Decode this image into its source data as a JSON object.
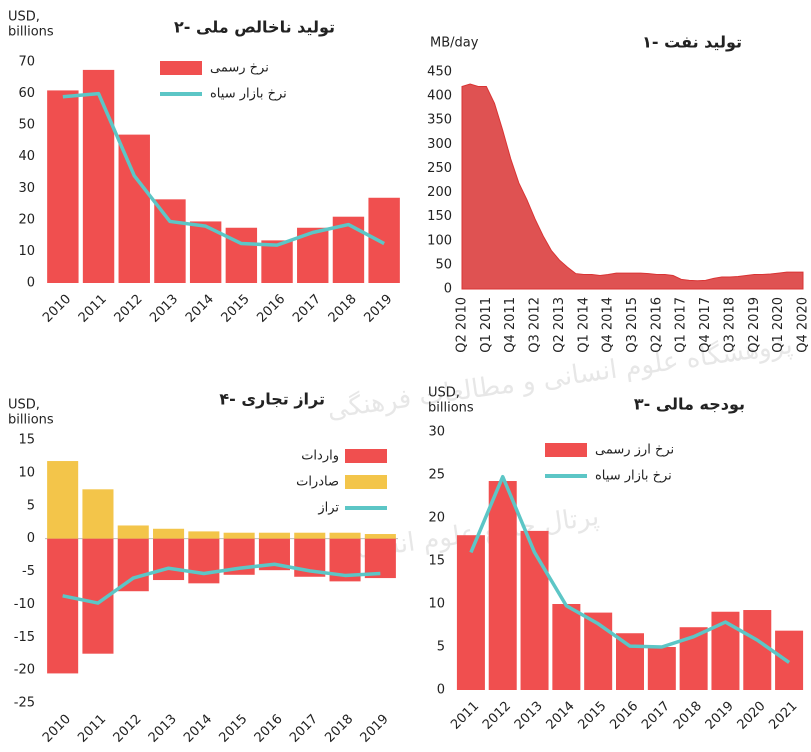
{
  "watermark": [
    "پژوهشگاه علوم انسانی و مطالعات فرهنگی",
    "پرتال جامع علوم انسانی"
  ],
  "chart_data": [
    {
      "type": "bar",
      "title": "۲- تولید ناخالص ملی",
      "y_label": [
        "USD,",
        "billions"
      ],
      "categories": [
        "2010",
        "2011",
        "2012",
        "2013",
        "2014",
        "2015",
        "2016",
        "2017",
        "2018",
        "2019"
      ],
      "ylim": [
        0,
        70
      ],
      "yticks": [
        0,
        10,
        20,
        30,
        40,
        50,
        60,
        70
      ],
      "legend": "top-right",
      "series": [
        {
          "name": "نرخ رسمی",
          "type": "bar",
          "color": "#f04f4f",
          "values": [
            61,
            67.5,
            47,
            26.5,
            19.5,
            17.5,
            13.5,
            17.5,
            21,
            27
          ]
        },
        {
          "name": "نرخ بازار سیاه",
          "type": "line",
          "color": "#5cc6c6",
          "values": [
            59,
            60,
            34,
            19.5,
            18,
            12.5,
            12,
            16,
            18.5,
            12.5
          ]
        }
      ]
    },
    {
      "type": "area",
      "title": "۱- تولید نفت",
      "y_label": [
        "MB/day"
      ],
      "categories": [
        "Q2 2010",
        null,
        null,
        "Q1 2011",
        null,
        null,
        "Q4 2011",
        null,
        null,
        "Q3 2012",
        null,
        null,
        "Q2 2013",
        null,
        null,
        "Q1 2014",
        null,
        null,
        "Q4 2014",
        null,
        null,
        "Q3 2015",
        null,
        null,
        "Q2 2016",
        null,
        null,
        "Q1 2017",
        null,
        null,
        "Q4 2017",
        null,
        null,
        "Q3 2018",
        null,
        null,
        "Q2 2019",
        null,
        null,
        "Q1 2020",
        null,
        null,
        "Q4 2020"
      ],
      "values": [
        420,
        425,
        420,
        420,
        385,
        330,
        270,
        220,
        185,
        145,
        110,
        80,
        60,
        45,
        32,
        30,
        30,
        28,
        30,
        33,
        33,
        33,
        33,
        32,
        30,
        30,
        28,
        20,
        18,
        17,
        18,
        22,
        25,
        25,
        26,
        28,
        30,
        30,
        31,
        33,
        35,
        35,
        35
      ],
      "color": "#d93434",
      "ylim": [
        0,
        450
      ],
      "yticks": [
        0,
        50,
        100,
        150,
        200,
        250,
        300,
        350,
        400,
        450
      ]
    },
    {
      "type": "bar",
      "title": "۴- تراز تجاری",
      "y_label": [
        "USD,",
        "billions"
      ],
      "categories": [
        "2010",
        "2011",
        "2012",
        "2013",
        "2014",
        "2015",
        "2016",
        "2017",
        "2018",
        "2019"
      ],
      "ylim": [
        -25,
        15
      ],
      "yticks": [
        -25,
        -20,
        -15,
        -10,
        -5,
        0,
        5,
        10,
        15
      ],
      "legend": "top-right",
      "series": [
        {
          "name": "واردات",
          "type": "bar",
          "color": "#f04f4f",
          "values": [
            -20.5,
            -17.5,
            -8,
            -6.3,
            -6.8,
            -5.5,
            -4.8,
            -5.8,
            -6.5,
            -6
          ]
        },
        {
          "name": "صادرات",
          "type": "bar",
          "color": "#f3c54a",
          "values": [
            11.8,
            7.5,
            2,
            1.5,
            1.1,
            0.9,
            0.9,
            0.9,
            0.9,
            0.7
          ]
        },
        {
          "name": "تراز",
          "type": "line",
          "color": "#5cc6c6",
          "values": [
            -8.7,
            -9.8,
            -6,
            -4.5,
            -5.3,
            -4.5,
            -3.9,
            -4.9,
            -5.6,
            -5.3
          ]
        }
      ]
    },
    {
      "type": "bar",
      "title": "۳- بودجه مالی",
      "y_label": [
        "USD,",
        "billions"
      ],
      "categories": [
        "2011",
        "2012",
        "2013",
        "2014",
        "2015",
        "2016",
        "2017",
        "2018",
        "2019",
        "2020",
        "2021"
      ],
      "ylim": [
        0,
        30
      ],
      "yticks": [
        0,
        5,
        10,
        15,
        20,
        25,
        30
      ],
      "legend": "top-left",
      "series": [
        {
          "name": "نرخ ارز رسمی",
          "type": "bar",
          "color": "#f04f4f",
          "values": [
            18,
            24.3,
            18.5,
            10,
            9,
            6.6,
            5,
            7.3,
            9.1,
            9.3,
            6.9
          ]
        },
        {
          "name": "نرخ بازار سیاه",
          "type": "line",
          "color": "#5cc6c6",
          "values": [
            16,
            24.8,
            16,
            9.8,
            7.7,
            5.1,
            5,
            6.2,
            7.9,
            5.8,
            3.2
          ]
        }
      ]
    }
  ]
}
